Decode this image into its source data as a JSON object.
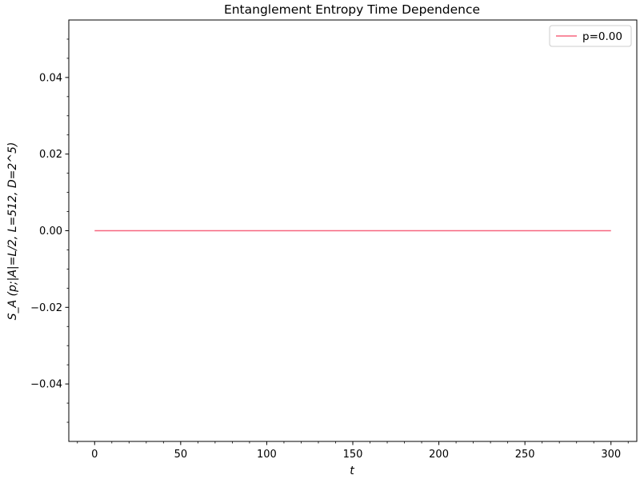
{
  "chart_data": {
    "type": "line",
    "title": "Entanglement Entropy Time Dependence",
    "xlabel": "t",
    "ylabel": "S_A (p;|A|=L/2, L=512, D=2^5)",
    "xlim": [
      -15,
      315
    ],
    "ylim": [
      -0.055,
      0.055
    ],
    "x_ticks": [
      0,
      50,
      100,
      150,
      200,
      250,
      300
    ],
    "x_tick_labels": [
      "0",
      "50",
      "100",
      "150",
      "200",
      "250",
      "300"
    ],
    "y_ticks": [
      -0.04,
      -0.02,
      0.0,
      0.02,
      0.04
    ],
    "y_tick_labels": [
      "−0.04",
      "−0.02",
      "0.00",
      "0.02",
      "0.04"
    ],
    "grid": false,
    "legend_position": "top-right",
    "series": [
      {
        "name": "p=0.00",
        "color": "#f7667f",
        "x": [
          0,
          300
        ],
        "y": [
          0.0,
          0.0
        ]
      }
    ]
  }
}
